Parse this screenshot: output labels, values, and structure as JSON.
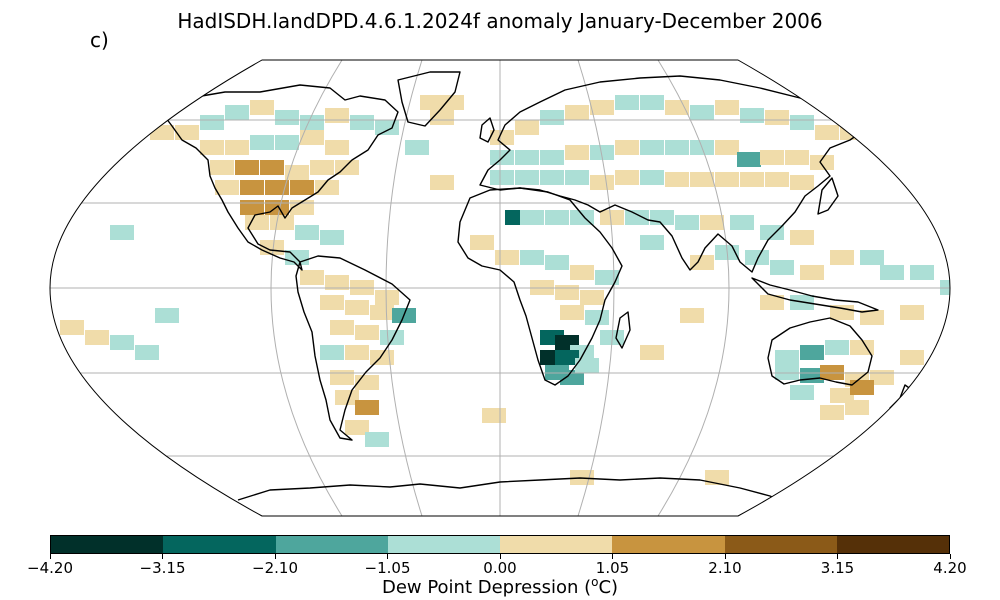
{
  "title": "HadISDH.landDPD.4.6.1.2024f anomaly January-December 2006",
  "panel_label": "c)",
  "colorbar": {
    "label_prefix": "Dew Point Depression (",
    "label_sup": "o",
    "label_suffix": "C)",
    "colors": [
      "#01302a",
      "#04665e",
      "#4ea69d",
      "#acdfd6",
      "#f0dcaa",
      "#c8943f",
      "#8b5a18",
      "#553008"
    ],
    "ticks": [
      "−4.20",
      "−3.15",
      "−2.10",
      "−1.05",
      "0.00",
      "1.05",
      "2.10",
      "3.15",
      "4.20"
    ]
  },
  "map": {
    "projection": "Robinson",
    "gridlines": true,
    "land_outline_color": "#000000",
    "grid_color": "#b0b0b0"
  }
}
